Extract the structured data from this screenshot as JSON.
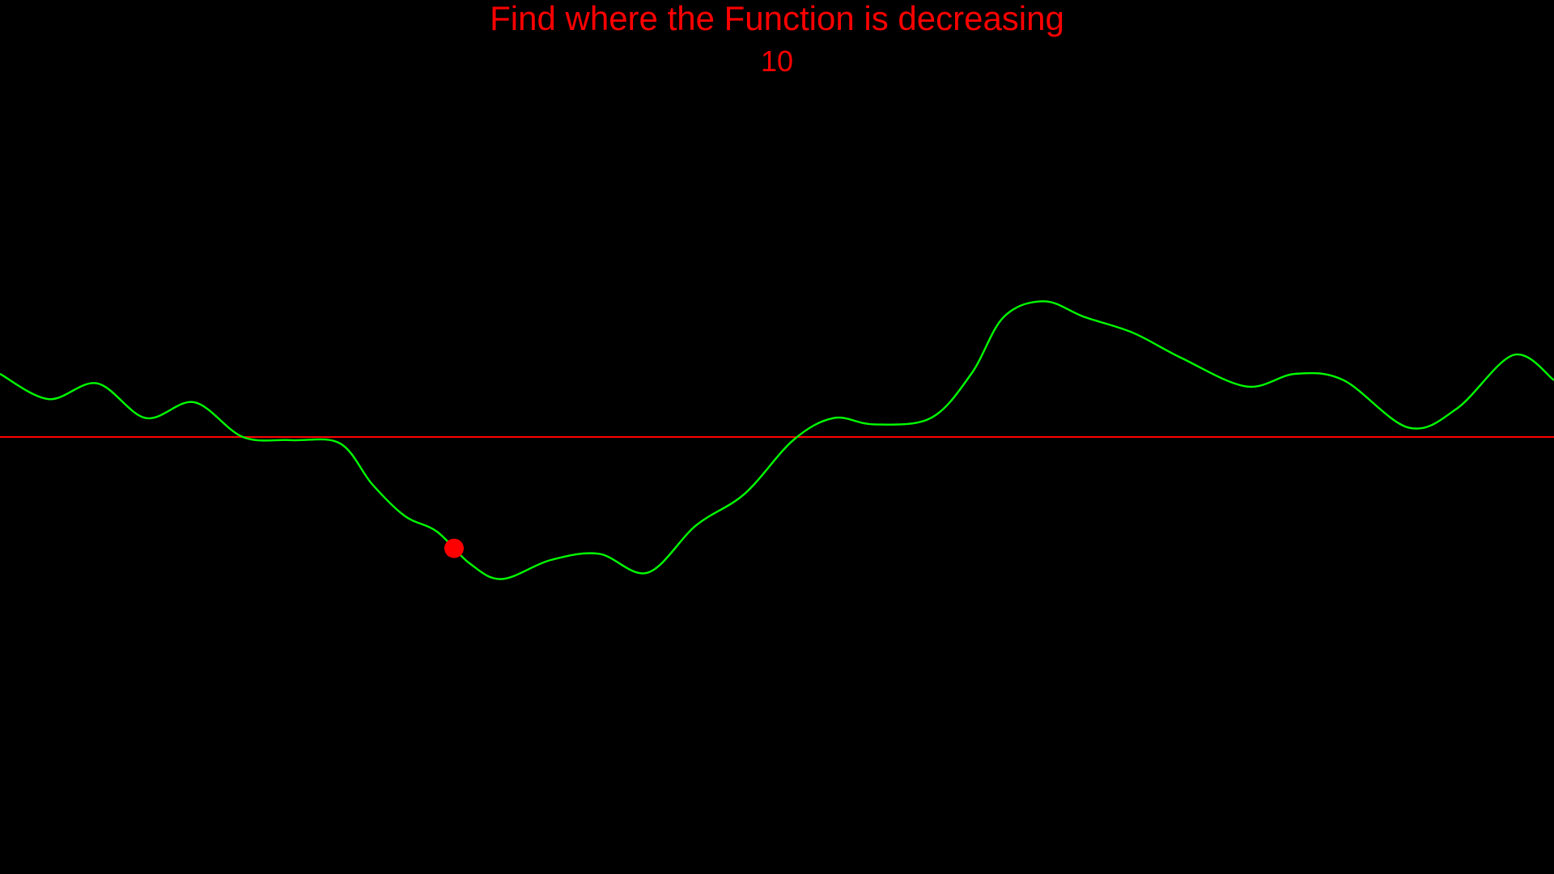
{
  "game": {
    "instruction": "Find where the Function is decreasing",
    "score": "10"
  },
  "colors": {
    "background": "#000000",
    "text": "#ff0000",
    "curve": "#00ff00",
    "baseline": "#ff0000",
    "cursor": "#ff0000"
  },
  "function_curve": {
    "x_range": [
      0,
      1920
    ],
    "y_range": [
      -1,
      1
    ],
    "baseline_value": 0,
    "points": [
      [
        0,
        0.2
      ],
      [
        60,
        0.12
      ],
      [
        120,
        0.17
      ],
      [
        180,
        0.06
      ],
      [
        240,
        0.11
      ],
      [
        300,
        0.0
      ],
      [
        360,
        -0.01
      ],
      [
        420,
        -0.02
      ],
      [
        460,
        -0.15
      ],
      [
        500,
        -0.25
      ],
      [
        540,
        -0.3
      ],
      [
        580,
        -0.4
      ],
      [
        620,
        -0.45
      ],
      [
        680,
        -0.39
      ],
      [
        740,
        -0.37
      ],
      [
        800,
        -0.43
      ],
      [
        860,
        -0.28
      ],
      [
        920,
        -0.18
      ],
      [
        980,
        -0.01
      ],
      [
        1030,
        0.06
      ],
      [
        1080,
        0.04
      ],
      [
        1150,
        0.06
      ],
      [
        1200,
        0.2
      ],
      [
        1240,
        0.38
      ],
      [
        1290,
        0.43
      ],
      [
        1340,
        0.38
      ],
      [
        1400,
        0.33
      ],
      [
        1460,
        0.25
      ],
      [
        1540,
        0.16
      ],
      [
        1600,
        0.2
      ],
      [
        1660,
        0.18
      ],
      [
        1740,
        0.03
      ],
      [
        1800,
        0.09
      ],
      [
        1870,
        0.26
      ],
      [
        1920,
        0.18
      ]
    ]
  },
  "cursor": {
    "x": 561
  }
}
